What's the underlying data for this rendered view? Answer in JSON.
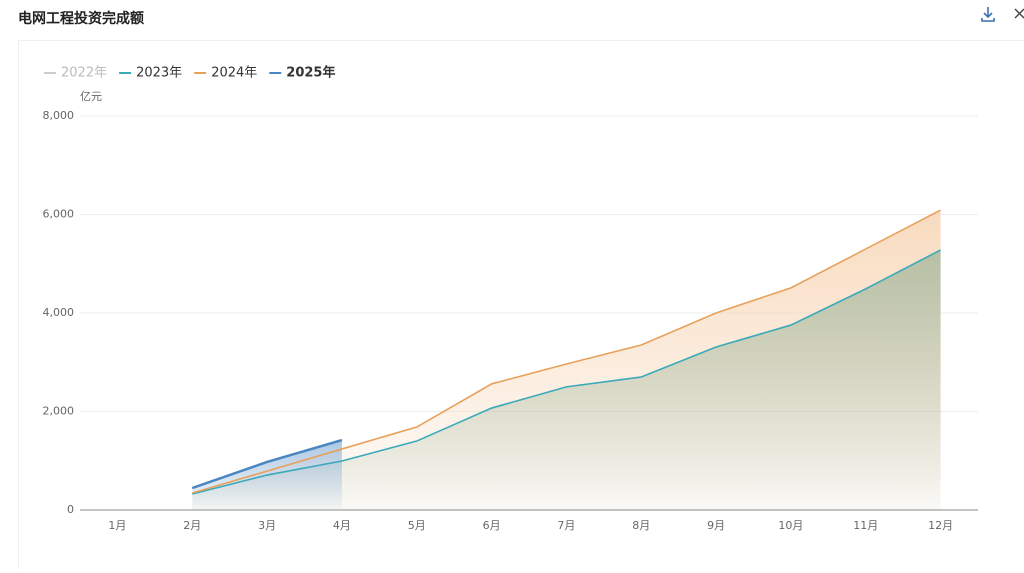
{
  "chart_data": {
    "type": "line",
    "title": "电网工程投资完成额",
    "y_unit": "亿元",
    "categories": [
      "1月",
      "2月",
      "3月",
      "4月",
      "5月",
      "6月",
      "7月",
      "8月",
      "9月",
      "10月",
      "11月",
      "12月"
    ],
    "series": [
      {
        "name": "2022年",
        "color": "#cccccc",
        "hidden": true,
        "values": [
          null,
          null,
          null,
          null,
          null,
          null,
          null,
          null,
          null,
          null,
          null,
          null
        ]
      },
      {
        "name": "2023年",
        "color": "#3aa9b9",
        "area": "#9fb59a",
        "values": [
          null,
          325,
          710,
          995,
          1400,
          2070,
          2500,
          2700,
          3310,
          3755,
          4490,
          5280
        ]
      },
      {
        "name": "2024年",
        "color": "#e8a15a",
        "area": "#f6cfaa",
        "values": [
          null,
          345,
          790,
          1240,
          1685,
          2560,
          2965,
          3350,
          4000,
          4510,
          5300,
          6090
        ]
      },
      {
        "name": "2025年",
        "color": "#4a86c0",
        "area": "#8fb4da",
        "values": [
          null,
          445,
          975,
          1420,
          null,
          null,
          null,
          null,
          null,
          null,
          null,
          null
        ]
      }
    ],
    "ylim": [
      0,
      8000
    ],
    "yticks": [
      0,
      {
        "value": 2000,
        "label": "2,000"
      },
      {
        "value": 4000,
        "label": "4,000"
      },
      {
        "value": 6000,
        "label": "6,000"
      },
      {
        "value": 8000,
        "label": "8,000"
      }
    ],
    "grid": true
  }
}
